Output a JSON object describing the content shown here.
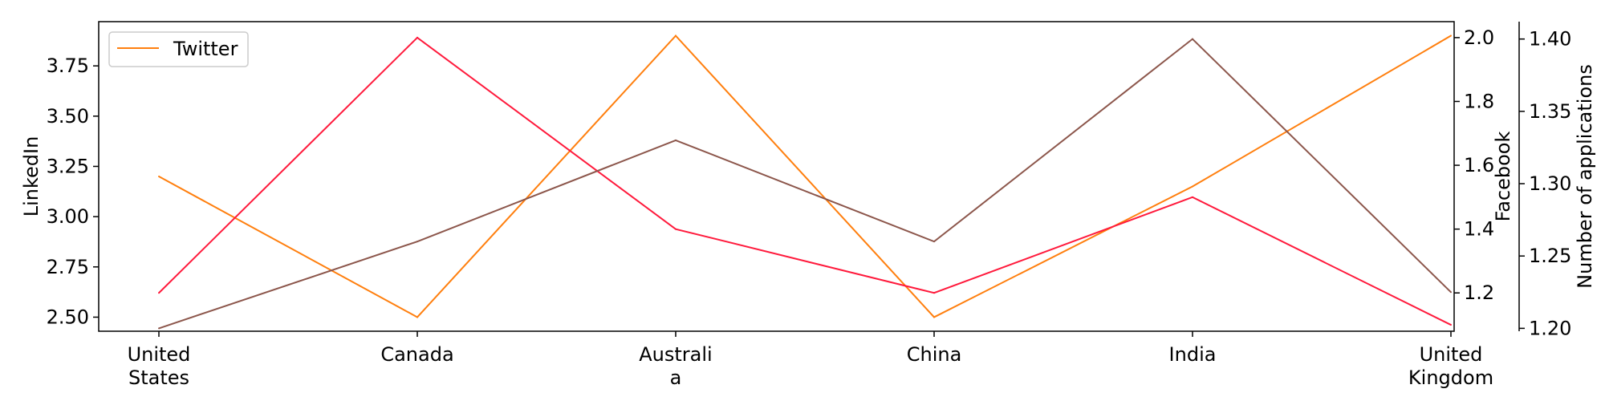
{
  "chart_data": {
    "type": "line",
    "categories": [
      "United States",
      "Canada",
      "Australia",
      "China",
      "India",
      "United Kingdom"
    ],
    "category_tick_labels": [
      [
        "United",
        "States"
      ],
      [
        "Canada"
      ],
      [
        "Australi",
        "a"
      ],
      [
        "China"
      ],
      [
        "India"
      ],
      [
        "United",
        "Kingdom"
      ]
    ],
    "axes": {
      "left": {
        "label": "LinkedIn",
        "ylim": [
          2.43,
          3.97
        ],
        "ticks": [
          "2.50",
          "2.75",
          "3.00",
          "3.25",
          "3.50",
          "3.75"
        ]
      },
      "right1": {
        "label": "Facebook",
        "ylim": [
          1.08,
          2.05
        ],
        "ticks": [
          "1.2",
          "1.4",
          "1.6",
          "1.8",
          "2.0"
        ]
      },
      "right2": {
        "label": "Number of applications",
        "ylim": [
          1.198,
          1.412
        ],
        "ticks": [
          "1.20",
          "1.25",
          "1.30",
          "1.35",
          "1.40"
        ]
      }
    },
    "series": [
      {
        "name": "Twitter",
        "axis": "left",
        "color": "#ff7f0e",
        "values": [
          3.2,
          2.5,
          3.9,
          2.5,
          3.15,
          3.9
        ]
      },
      {
        "axis": "right1",
        "color": "#ff1a3c",
        "values": [
          1.2,
          2.0,
          1.4,
          1.2,
          1.5,
          1.1
        ]
      },
      {
        "axis": "right2",
        "color": "#8c564b",
        "values": [
          1.2,
          1.26,
          1.33,
          1.26,
          1.4,
          1.225
        ]
      }
    ],
    "legend": {
      "position": "top-left",
      "entries": [
        "Twitter"
      ]
    },
    "grid": false
  }
}
